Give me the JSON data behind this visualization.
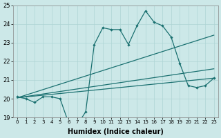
{
  "xlabel": "Humidex (Indice chaleur)",
  "xlim": [
    -0.5,
    23.5
  ],
  "ylim": [
    19,
    25
  ],
  "yticks": [
    19,
    20,
    21,
    22,
    23,
    24,
    25
  ],
  "xticks": [
    0,
    1,
    2,
    3,
    4,
    5,
    6,
    7,
    8,
    9,
    10,
    11,
    12,
    13,
    14,
    15,
    16,
    17,
    18,
    19,
    20,
    21,
    22,
    23
  ],
  "background_color": "#cce8e8",
  "grid_color": "#aed4d4",
  "line_color": "#1a7070",
  "jagged": {
    "x": [
      0,
      1,
      2,
      3,
      4,
      5,
      6,
      7,
      8,
      9,
      10,
      11,
      12,
      13,
      14,
      15,
      16,
      17,
      18,
      19,
      20,
      21,
      22,
      23
    ],
    "y": [
      20.1,
      20.0,
      19.8,
      20.1,
      20.1,
      20.0,
      18.7,
      18.6,
      19.3,
      22.9,
      23.8,
      23.7,
      23.7,
      22.9,
      23.9,
      24.7,
      24.1,
      23.9,
      23.3,
      21.9,
      20.7,
      20.6,
      20.7,
      21.1
    ]
  },
  "trend1": {
    "x": [
      0,
      23
    ],
    "y": [
      20.05,
      23.4
    ]
  },
  "trend2": {
    "x": [
      0,
      23
    ],
    "y": [
      20.05,
      21.1
    ]
  },
  "trend3": {
    "x": [
      0,
      23
    ],
    "y": [
      20.05,
      21.6
    ]
  }
}
